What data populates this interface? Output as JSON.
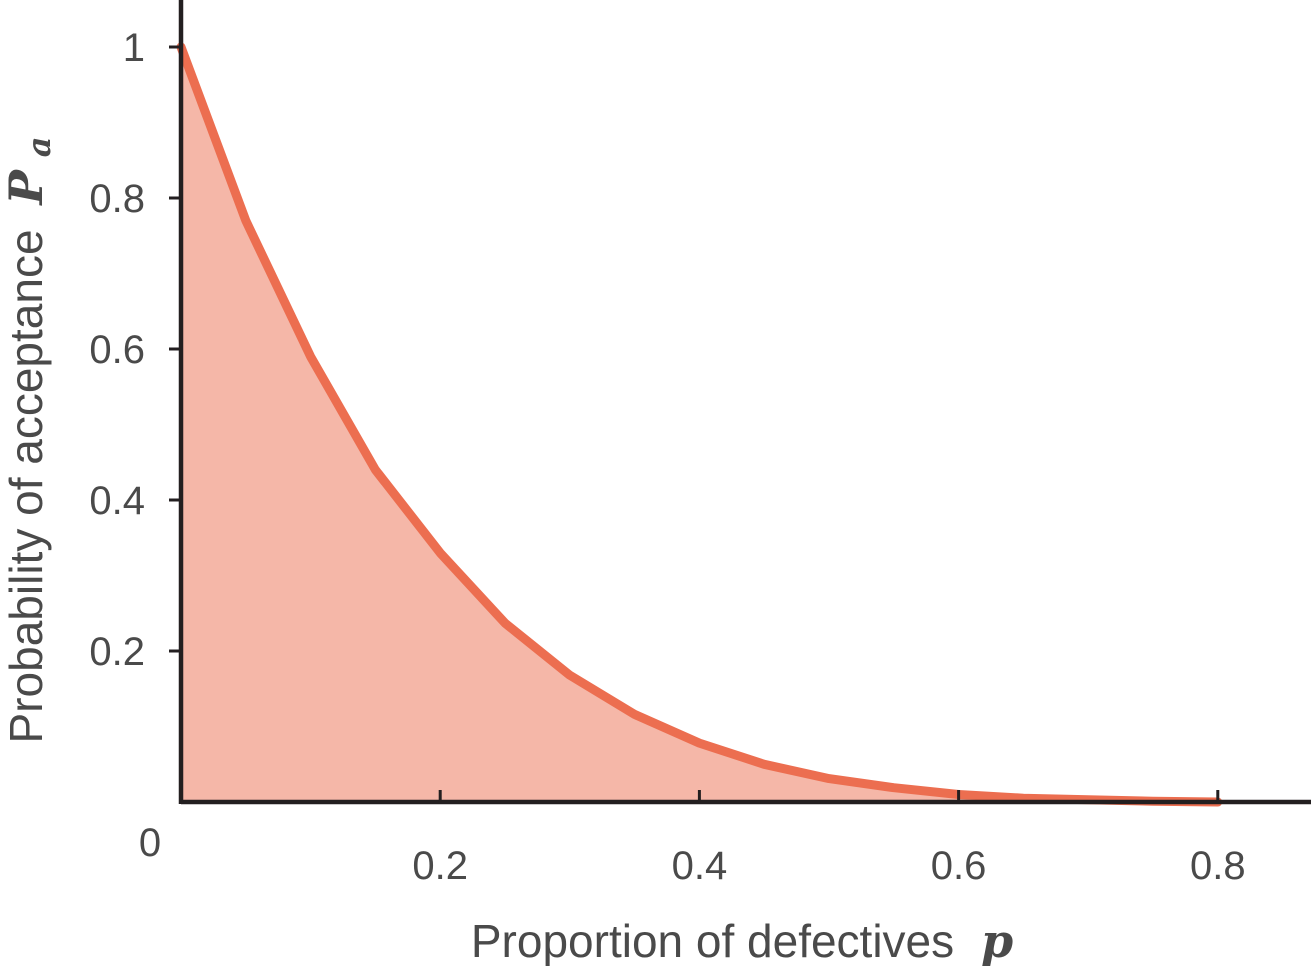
{
  "chart_data": {
    "type": "area",
    "xlabel": "Proportion of defectives",
    "xlabel_var": "p",
    "ylabel": "Probability of acceptance",
    "ylabel_var": "P",
    "ylabel_var_sub": "a",
    "xlim": [
      0,
      0.87
    ],
    "ylim": [
      0,
      1.05
    ],
    "origin_label": "0",
    "x_ticks": [
      {
        "value": 0.2,
        "label": "0.2"
      },
      {
        "value": 0.4,
        "label": "0.4"
      },
      {
        "value": 0.6,
        "label": "0.6"
      },
      {
        "value": 0.8,
        "label": "0.8"
      }
    ],
    "y_ticks": [
      {
        "value": 0.2,
        "label": "0.2"
      },
      {
        "value": 0.4,
        "label": "0.4"
      },
      {
        "value": 0.6,
        "label": "0.6"
      },
      {
        "value": 0.8,
        "label": "0.8"
      },
      {
        "value": 1.0,
        "label": "1"
      }
    ],
    "series": [
      {
        "x": [
          0,
          0.05,
          0.1,
          0.15,
          0.2,
          0.25,
          0.3,
          0.35,
          0.4,
          0.45,
          0.5,
          0.55,
          0.6,
          0.65,
          0.7,
          0.75,
          0.8
        ],
        "values": [
          1.0,
          0.77,
          0.59,
          0.44,
          0.33,
          0.237,
          0.168,
          0.116,
          0.078,
          0.05,
          0.031,
          0.019,
          0.01,
          0.005,
          0.003,
          0.001,
          0.0
        ]
      }
    ],
    "colors": {
      "line": "#ec6e50",
      "fill": "#f5b7a8",
      "axis": "#231f20"
    },
    "grid": false,
    "legend": "none"
  }
}
